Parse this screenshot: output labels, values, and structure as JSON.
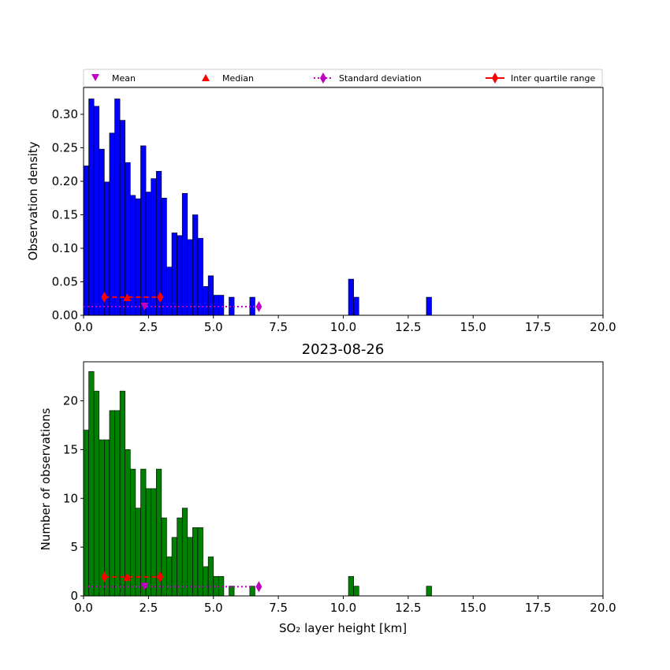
{
  "chart_data": [
    {
      "type": "bar",
      "panel": "density",
      "title": "",
      "ylabel": "Observation density",
      "xlabel": "",
      "xlim": [
        0,
        20
      ],
      "ylim": [
        0,
        0.34
      ],
      "bar_color": "#0000ff",
      "bin_width": 0.2,
      "xticks": [
        "0.0",
        "2.5",
        "5.0",
        "7.5",
        "10.0",
        "12.5",
        "15.0",
        "17.5",
        "20.0"
      ],
      "yticks": [
        "0.00",
        "0.05",
        "0.10",
        "0.15",
        "0.20",
        "0.25",
        "0.30"
      ],
      "bin_starts": [
        0.0,
        0.2,
        0.4,
        0.6,
        0.8,
        1.0,
        1.2,
        1.4,
        1.6,
        1.8,
        2.0,
        2.2,
        2.4,
        2.6,
        2.8,
        3.0,
        3.2,
        3.4,
        3.6,
        3.8,
        4.0,
        4.2,
        4.4,
        4.6,
        4.8,
        5.0,
        5.2,
        5.6,
        6.4,
        10.2,
        10.4,
        13.2
      ],
      "values": [
        0.223,
        0.323,
        0.312,
        0.248,
        0.199,
        0.272,
        0.323,
        0.291,
        0.228,
        0.179,
        0.174,
        0.253,
        0.184,
        0.204,
        0.215,
        0.175,
        0.072,
        0.123,
        0.119,
        0.182,
        0.113,
        0.15,
        0.115,
        0.043,
        0.059,
        0.03,
        0.03,
        0.027,
        0.027,
        0.054,
        0.027,
        0.027
      ],
      "stats": {
        "mean": 2.35,
        "median": 1.68,
        "std_start": 0.0,
        "std_end": 6.75,
        "iqr": [
          0.8,
          2.95
        ]
      }
    },
    {
      "type": "bar",
      "panel": "counts",
      "title": "2023-08-26",
      "ylabel": "Number of observations",
      "xlabel": "SO₂ layer height [km]",
      "xlim": [
        0,
        20
      ],
      "ylim": [
        0,
        24
      ],
      "bar_color": "#008000",
      "bin_width": 0.2,
      "xticks": [
        "0.0",
        "2.5",
        "5.0",
        "7.5",
        "10.0",
        "12.5",
        "15.0",
        "17.5",
        "20.0"
      ],
      "yticks": [
        "0",
        "5",
        "10",
        "15",
        "20"
      ],
      "bin_starts": [
        0.0,
        0.2,
        0.4,
        0.6,
        0.8,
        1.0,
        1.2,
        1.4,
        1.6,
        1.8,
        2.0,
        2.2,
        2.4,
        2.6,
        2.8,
        3.0,
        3.2,
        3.4,
        3.6,
        3.8,
        4.0,
        4.2,
        4.4,
        4.6,
        4.8,
        5.0,
        5.2,
        5.6,
        6.4,
        10.2,
        10.4,
        13.2
      ],
      "values": [
        17,
        23,
        21,
        16,
        16,
        19,
        19,
        21,
        15,
        13,
        9,
        13,
        11,
        11,
        13,
        8,
        4,
        6,
        8,
        9,
        6,
        7,
        7,
        3,
        4,
        2,
        2,
        1,
        1,
        2,
        1,
        1
      ],
      "stats": {
        "mean": 2.35,
        "median": 1.68,
        "std_start": 0.0,
        "std_end": 6.75,
        "iqr": [
          0.8,
          2.95
        ]
      }
    }
  ],
  "legend": {
    "placement": "top",
    "entries": [
      {
        "label": "Mean",
        "marker": "triangle-down",
        "color": "#c000c0"
      },
      {
        "label": "Median",
        "marker": "triangle-up",
        "color": "#ff0000"
      },
      {
        "label": "Standard deviation",
        "marker": "diamond-dotted",
        "color": "#c000c0"
      },
      {
        "label": "Inter quartile range",
        "marker": "diamond-dashed",
        "color": "#ff0000"
      }
    ]
  }
}
